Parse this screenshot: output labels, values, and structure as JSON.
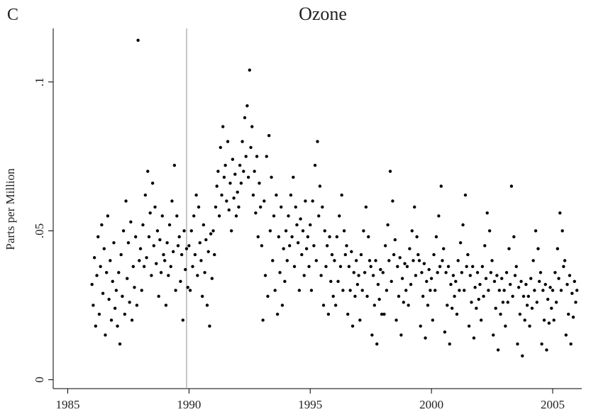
{
  "chart_data": {
    "type": "scatter",
    "panel_label": "C",
    "title": "Ozone",
    "y_label": "Parts per Million",
    "color": "#000000",
    "vline": 1989.9,
    "vline_color": "#a0a0a0",
    "xlim": [
      1984.4,
      2006.2
    ],
    "ylim": [
      -0.003,
      0.118
    ],
    "xticks": [
      1985,
      1990,
      1995,
      2000,
      2005
    ],
    "yticks": [
      {
        "value": 0,
        "label": "0"
      },
      {
        "value": 0.05,
        "label": ".05"
      },
      {
        "value": 0.1,
        "label": ".1"
      }
    ],
    "x": [
      1986,
      1986.05,
      1986.1,
      1986.15,
      1986.2,
      1986.25,
      1986.3,
      1986.35,
      1986.4,
      1986.45,
      1986.5,
      1986.55,
      1986.6,
      1986.65,
      1986.7,
      1986.75,
      1986.8,
      1986.85,
      1986.9,
      1986.95,
      1987,
      1987.05,
      1987.1,
      1987.15,
      1987.2,
      1987.25,
      1987.3,
      1987.35,
      1987.4,
      1987.45,
      1987.5,
      1987.55,
      1987.6,
      1987.65,
      1987.7,
      1987.75,
      1987.8,
      1987.85,
      1987.9,
      1987.95,
      1988,
      1988.05,
      1988.1,
      1988.15,
      1988.2,
      1988.25,
      1988.3,
      1988.35,
      1988.4,
      1988.45,
      1988.5,
      1988.55,
      1988.6,
      1988.65,
      1988.7,
      1988.75,
      1988.8,
      1988.85,
      1988.9,
      1988.95,
      1989,
      1989.05,
      1989.1,
      1989.15,
      1989.2,
      1989.25,
      1989.3,
      1989.35,
      1989.4,
      1989.45,
      1989.5,
      1989.55,
      1989.6,
      1989.65,
      1989.7,
      1989.75,
      1989.8,
      1989.85,
      1989.9,
      1989.95,
      1990,
      1990.05,
      1990.1,
      1990.15,
      1990.2,
      1990.25,
      1990.3,
      1990.35,
      1990.4,
      1990.45,
      1990.5,
      1990.55,
      1990.6,
      1990.65,
      1990.7,
      1990.75,
      1990.8,
      1990.85,
      1990.9,
      1990.95,
      1991,
      1991.05,
      1991.1,
      1991.15,
      1991.2,
      1991.25,
      1991.3,
      1991.35,
      1991.4,
      1991.45,
      1991.5,
      1991.55,
      1991.6,
      1991.65,
      1991.7,
      1991.75,
      1991.8,
      1991.85,
      1991.9,
      1991.95,
      1992,
      1992.05,
      1992.1,
      1992.15,
      1992.2,
      1992.25,
      1992.3,
      1992.35,
      1992.4,
      1992.45,
      1992.5,
      1992.55,
      1992.6,
      1992.65,
      1992.7,
      1992.75,
      1992.8,
      1992.85,
      1992.9,
      1992.95,
      1993,
      1993.05,
      1993.1,
      1993.15,
      1993.2,
      1993.25,
      1993.3,
      1993.35,
      1993.4,
      1993.45,
      1993.5,
      1993.55,
      1993.6,
      1993.65,
      1993.7,
      1993.75,
      1993.8,
      1993.85,
      1993.9,
      1993.95,
      1994,
      1994.05,
      1994.1,
      1994.15,
      1994.2,
      1994.25,
      1994.3,
      1994.35,
      1994.4,
      1994.45,
      1994.5,
      1994.55,
      1994.6,
      1994.65,
      1994.7,
      1994.75,
      1994.8,
      1994.85,
      1994.9,
      1994.95,
      1995,
      1995.05,
      1995.1,
      1995.15,
      1995.2,
      1995.25,
      1995.3,
      1995.35,
      1995.4,
      1995.45,
      1995.5,
      1995.55,
      1995.6,
      1995.65,
      1995.7,
      1995.75,
      1995.8,
      1995.85,
      1995.9,
      1995.95,
      1996,
      1996.05,
      1996.1,
      1996.15,
      1996.2,
      1996.25,
      1996.3,
      1996.35,
      1996.4,
      1996.45,
      1996.5,
      1996.55,
      1996.6,
      1996.65,
      1996.7,
      1996.75,
      1996.8,
      1996.85,
      1996.9,
      1996.95,
      1997,
      1997.05,
      1997.1,
      1997.15,
      1997.2,
      1997.25,
      1997.3,
      1997.35,
      1997.4,
      1997.45,
      1997.5,
      1997.55,
      1997.6,
      1997.65,
      1997.7,
      1997.75,
      1997.8,
      1997.85,
      1997.9,
      1997.95,
      1998,
      1998.05,
      1998.1,
      1998.15,
      1998.2,
      1998.25,
      1998.3,
      1998.35,
      1998.4,
      1998.45,
      1998.5,
      1998.55,
      1998.6,
      1998.65,
      1998.7,
      1998.75,
      1998.8,
      1998.85,
      1998.9,
      1998.95,
      1999,
      1999.05,
      1999.1,
      1999.15,
      1999.2,
      1999.25,
      1999.3,
      1999.35,
      1999.4,
      1999.45,
      1999.5,
      1999.55,
      1999.6,
      1999.65,
      1999.7,
      1999.75,
      1999.8,
      1999.85,
      1999.9,
      1999.95,
      2000,
      2000.05,
      2000.1,
      2000.15,
      2000.2,
      2000.25,
      2000.3,
      2000.35,
      2000.4,
      2000.45,
      2000.5,
      2000.55,
      2000.6,
      2000.65,
      2000.7,
      2000.75,
      2000.8,
      2000.85,
      2000.9,
      2000.95,
      2001,
      2001.05,
      2001.1,
      2001.15,
      2001.2,
      2001.25,
      2001.3,
      2001.35,
      2001.4,
      2001.45,
      2001.5,
      2001.55,
      2001.6,
      2001.65,
      2001.7,
      2001.75,
      2001.8,
      2001.85,
      2001.9,
      2001.95,
      2002,
      2002.05,
      2002.1,
      2002.15,
      2002.2,
      2002.25,
      2002.3,
      2002.35,
      2002.4,
      2002.45,
      2002.5,
      2002.55,
      2002.6,
      2002.65,
      2002.7,
      2002.75,
      2002.8,
      2002.85,
      2002.9,
      2002.95,
      2003,
      2003.05,
      2003.1,
      2003.15,
      2003.2,
      2003.25,
      2003.3,
      2003.35,
      2003.4,
      2003.45,
      2003.5,
      2003.55,
      2003.6,
      2003.65,
      2003.7,
      2003.75,
      2003.8,
      2003.85,
      2003.9,
      2003.95,
      2004,
      2004.05,
      2004.1,
      2004.15,
      2004.2,
      2004.25,
      2004.3,
      2004.35,
      2004.4,
      2004.45,
      2004.5,
      2004.55,
      2004.6,
      2004.65,
      2004.7,
      2004.75,
      2004.8,
      2004.85,
      2004.9,
      2004.95,
      2005,
      2005.05,
      2005.1,
      2005.15,
      2005.2,
      2005.25,
      2005.3,
      2005.35,
      2005.4,
      2005.45,
      2005.5,
      2005.55,
      2005.6,
      2005.65,
      2005.7,
      2005.75,
      2005.8,
      2005.85,
      2005.9,
      2005.95,
      2006
    ],
    "values": [
      0.032,
      0.025,
      0.041,
      0.018,
      0.035,
      0.048,
      0.022,
      0.038,
      0.052,
      0.029,
      0.044,
      0.015,
      0.036,
      0.055,
      0.027,
      0.04,
      0.02,
      0.033,
      0.046,
      0.024,
      0.03,
      0.018,
      0.036,
      0.012,
      0.042,
      0.028,
      0.05,
      0.022,
      0.06,
      0.034,
      0.046,
      0.026,
      0.053,
      0.02,
      0.038,
      0.031,
      0.048,
      0.025,
      0.114,
      0.04,
      0.044,
      0.03,
      0.052,
      0.038,
      0.062,
      0.041,
      0.07,
      0.048,
      0.056,
      0.035,
      0.066,
      0.045,
      0.058,
      0.039,
      0.05,
      0.028,
      0.047,
      0.036,
      0.055,
      0.042,
      0.04,
      0.025,
      0.046,
      0.035,
      0.052,
      0.038,
      0.06,
      0.043,
      0.072,
      0.03,
      0.055,
      0.045,
      0.048,
      0.033,
      0.042,
      0.02,
      0.05,
      0.037,
      0.044,
      0.031,
      0.045,
      0.03,
      0.05,
      0.038,
      0.055,
      0.042,
      0.062,
      0.035,
      0.058,
      0.046,
      0.04,
      0.028,
      0.052,
      0.036,
      0.047,
      0.025,
      0.043,
      0.018,
      0.049,
      0.034,
      0.05,
      0.042,
      0.058,
      0.065,
      0.07,
      0.055,
      0.078,
      0.062,
      0.085,
      0.068,
      0.072,
      0.06,
      0.08,
      0.057,
      0.066,
      0.05,
      0.074,
      0.061,
      0.069,
      0.055,
      0.063,
      0.058,
      0.072,
      0.066,
      0.08,
      0.07,
      0.088,
      0.075,
      0.092,
      0.068,
      0.104,
      0.078,
      0.085,
      0.062,
      0.07,
      0.056,
      0.075,
      0.048,
      0.066,
      0.058,
      0.045,
      0.02,
      0.06,
      0.035,
      0.075,
      0.028,
      0.082,
      0.05,
      0.068,
      0.04,
      0.055,
      0.03,
      0.062,
      0.022,
      0.048,
      0.036,
      0.058,
      0.025,
      0.044,
      0.033,
      0.05,
      0.04,
      0.055,
      0.045,
      0.062,
      0.048,
      0.068,
      0.038,
      0.058,
      0.052,
      0.046,
      0.03,
      0.054,
      0.042,
      0.05,
      0.035,
      0.06,
      0.044,
      0.048,
      0.038,
      0.052,
      0.03,
      0.06,
      0.045,
      0.072,
      0.04,
      0.08,
      0.055,
      0.065,
      0.035,
      0.058,
      0.025,
      0.05,
      0.038,
      0.045,
      0.022,
      0.048,
      0.033,
      0.042,
      0.028,
      0.04,
      0.025,
      0.048,
      0.033,
      0.055,
      0.038,
      0.062,
      0.03,
      0.05,
      0.042,
      0.045,
      0.022,
      0.038,
      0.03,
      0.043,
      0.018,
      0.036,
      0.028,
      0.04,
      0.032,
      0.035,
      0.02,
      0.042,
      0.03,
      0.05,
      0.036,
      0.058,
      0.028,
      0.048,
      0.04,
      0.038,
      0.015,
      0.035,
      0.025,
      0.04,
      0.012,
      0.032,
      0.027,
      0.037,
      0.022,
      0.036,
      0.022,
      0.045,
      0.03,
      0.052,
      0.04,
      0.07,
      0.033,
      0.06,
      0.042,
      0.047,
      0.02,
      0.038,
      0.028,
      0.041,
      0.015,
      0.034,
      0.026,
      0.039,
      0.03,
      0.038,
      0.025,
      0.044,
      0.032,
      0.05,
      0.04,
      0.058,
      0.035,
      0.048,
      0.042,
      0.04,
      0.018,
      0.036,
      0.028,
      0.039,
      0.014,
      0.033,
      0.025,
      0.037,
      0.03,
      0.034,
      0.02,
      0.042,
      0.03,
      0.048,
      0.036,
      0.055,
      0.038,
      0.065,
      0.04,
      0.044,
      0.016,
      0.036,
      0.025,
      0.038,
      0.012,
      0.032,
      0.024,
      0.035,
      0.028,
      0.033,
      0.022,
      0.04,
      0.03,
      0.046,
      0.036,
      0.052,
      0.03,
      0.062,
      0.038,
      0.042,
      0.018,
      0.035,
      0.026,
      0.038,
      0.014,
      0.031,
      0.024,
      0.036,
      0.027,
      0.032,
      0.02,
      0.038,
      0.028,
      0.045,
      0.034,
      0.056,
      0.03,
      0.05,
      0.036,
      0.04,
      0.015,
      0.033,
      0.024,
      0.035,
      0.01,
      0.03,
      0.022,
      0.034,
      0.026,
      0.03,
      0.018,
      0.036,
      0.026,
      0.044,
      0.032,
      0.065,
      0.028,
      0.048,
      0.035,
      0.038,
      0.012,
      0.031,
      0.022,
      0.033,
      0.008,
      0.028,
      0.02,
      0.032,
      0.025,
      0.028,
      0.018,
      0.034,
      0.024,
      0.04,
      0.03,
      0.05,
      0.026,
      0.044,
      0.033,
      0.036,
      0.012,
      0.03,
      0.02,
      0.032,
      0.01,
      0.027,
      0.019,
      0.031,
      0.024,
      0.03,
      0.02,
      0.036,
      0.026,
      0.044,
      0.034,
      0.056,
      0.03,
      0.05,
      0.038,
      0.04,
      0.015,
      0.032,
      0.022,
      0.035,
      0.012,
      0.029,
      0.021,
      0.033,
      0.026,
      0.03
    ]
  }
}
